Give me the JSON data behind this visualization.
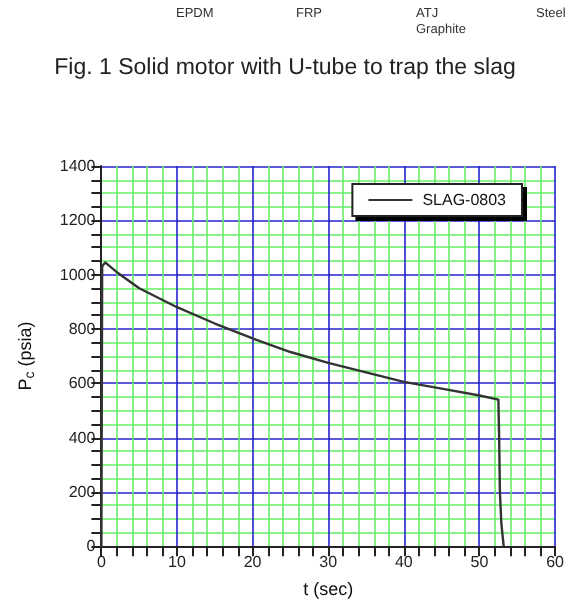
{
  "chart_data": {
    "type": "line",
    "xlabel": "t (sec)",
    "ylabel": "P$_{c}$ (psia)",
    "annotations": [
      "EPDM",
      "FRP",
      "ATJ Graphite",
      "Steel",
      "Fig. 1 Solid motor with U-tube to trap the slag"
    ],
    "xlim": [
      0,
      60
    ],
    "xticks": [
      0,
      {
        "value": 2,
        "label": null
      },
      {
        "value": 4,
        "label": null
      },
      {
        "value": 6,
        "label": null
      },
      {
        "value": 8,
        "label": null
      },
      10,
      {
        "value": 12,
        "label": null
      },
      {
        "value": 14,
        "label": null
      },
      {
        "value": 16,
        "label": null
      },
      {
        "value": 18,
        "label": null
      },
      20,
      {
        "value": 22,
        "label": null
      },
      {
        "value": 24,
        "label": null
      },
      {
        "value": 26,
        "label": null
      },
      {
        "value": 28,
        "label": null
      },
      30,
      {
        "value": 32,
        "label": null
      },
      {
        "value": 34,
        "label": null
      },
      {
        "value": 36,
        "label": null
      },
      {
        "value": 38,
        "label": null
      },
      40,
      {
        "value": 42,
        "label": null
      },
      {
        "value": 44,
        "label": null
      },
      {
        "value": 46,
        "label": null
      },
      {
        "value": 48,
        "label": null
      },
      50,
      {
        "value": 52,
        "label": null
      },
      {
        "value": 54,
        "label": null
      },
      {
        "value": 56,
        "label": null
      },
      {
        "value": 58,
        "label": null
      },
      60
    ],
    "ylim": [
      0,
      1400
    ],
    "yticks": [
      0,
      {
        "value": 50,
        "label": null
      },
      {
        "value": 100,
        "label": null
      },
      {
        "value": 150,
        "label": null
      },
      200,
      {
        "value": 250,
        "label": null
      },
      {
        "value": 300,
        "label": null
      },
      {
        "value": 350,
        "label": null
      },
      400,
      {
        "value": 450,
        "label": null
      },
      {
        "value": 500,
        "label": null
      },
      {
        "value": 550,
        "label": null
      },
      600,
      {
        "value": 650,
        "label": null
      },
      {
        "value": 700,
        "label": null
      },
      {
        "value": 750,
        "label": null
      },
      800,
      {
        "value": 850,
        "label": null
      },
      {
        "value": 900,
        "label": null
      },
      {
        "value": 950,
        "label": null
      },
      1000,
      {
        "value": 1050,
        "label": null
      },
      {
        "value": 1100,
        "label": null
      },
      {
        "value": 1150,
        "label": null
      },
      1200,
      {
        "value": 1250,
        "label": null
      },
      {
        "value": 1300,
        "label": null
      },
      {
        "value": 1350,
        "label": null
      },
      1400
    ],
    "grid": true,
    "legend": "top right",
    "marker": "none",
    "line_style": "solid",
    "series": [
      {
        "name": "SLAG-0803",
        "color": "#333333",
        "x": [
          0,
          0.1,
          0.5,
          2,
          5,
          10,
          15,
          20,
          25,
          30,
          35,
          40,
          45,
          50,
          52.5,
          52.6,
          52.7,
          52.9,
          53.2
        ],
        "values": [
          0,
          1030,
          1045,
          1010,
          950,
          880,
          820,
          765,
          715,
          675,
          640,
          605,
          580,
          555,
          540,
          400,
          200,
          80,
          0
        ]
      }
    ]
  }
}
